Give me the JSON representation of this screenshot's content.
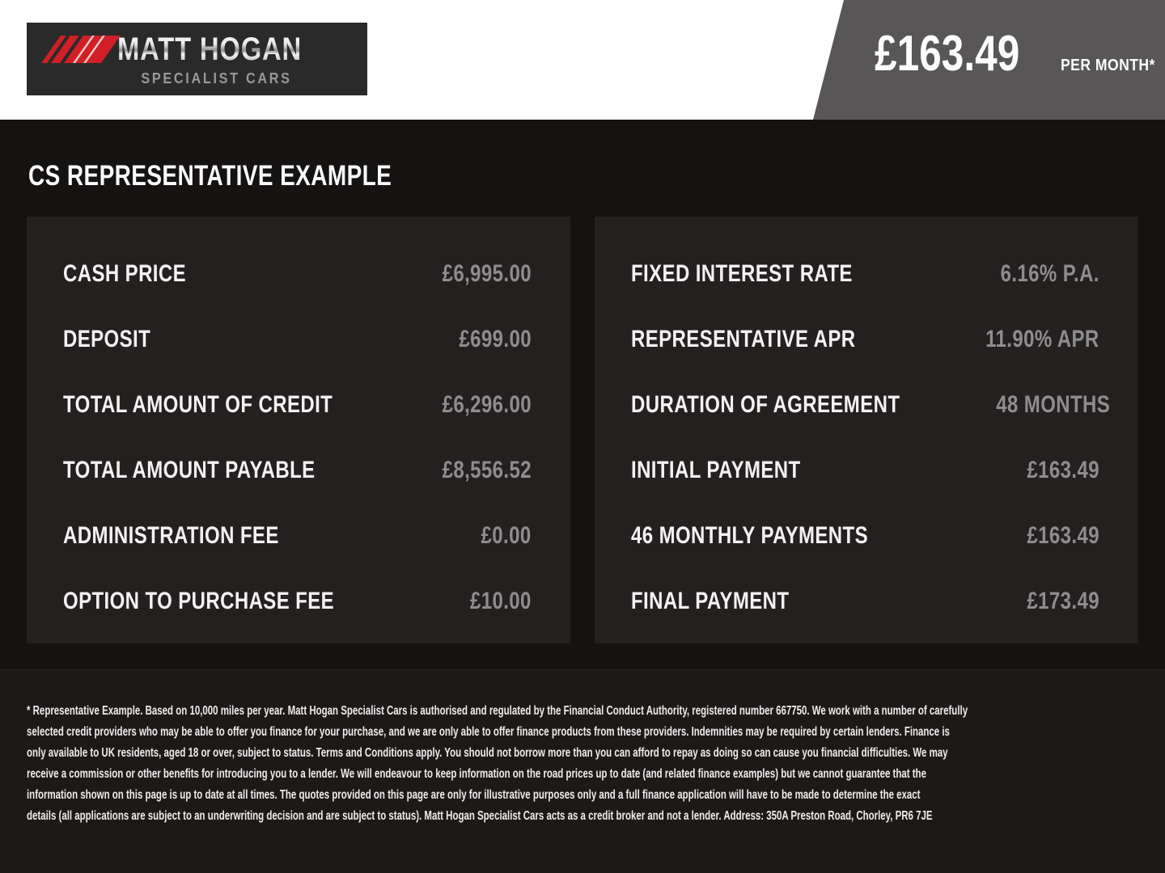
{
  "header": {
    "logo": {
      "title": "MATT HOGAN",
      "subtitle": "SPECIALIST CARS"
    },
    "monthly_price": "£163.49",
    "monthly_price_suffix": "PER MONTH*"
  },
  "main": {
    "heading": "CS REPRESENTATIVE EXAMPLE",
    "left_panel": {
      "rows": [
        {
          "label": "CASH PRICE",
          "value": "£6,995.00"
        },
        {
          "label": "DEPOSIT",
          "value": "£699.00"
        },
        {
          "label": "TOTAL AMOUNT OF CREDIT",
          "value": "£6,296.00"
        },
        {
          "label": "TOTAL AMOUNT PAYABLE",
          "value": "£8,556.52"
        },
        {
          "label": "ADMINISTRATION FEE",
          "value": "£0.00"
        },
        {
          "label": "OPTION TO PURCHASE FEE",
          "value": "£10.00"
        }
      ]
    },
    "right_panel": {
      "rows": [
        {
          "label": "FIXED INTEREST RATE",
          "value": "6.16% P.A."
        },
        {
          "label": "REPRESENTATIVE APR",
          "value": "11.90% APR"
        },
        {
          "label": "DURATION OF AGREEMENT",
          "value": "48 MONTHS"
        },
        {
          "label": "INITIAL PAYMENT",
          "value": "£163.49"
        },
        {
          "label": "46 MONTHLY PAYMENTS",
          "value": "£163.49"
        },
        {
          "label": "FINAL PAYMENT",
          "value": "£173.49"
        }
      ]
    }
  },
  "footer": {
    "lines": [
      "* Representative Example. Based on 10,000 miles per year. Matt Hogan Specialist Cars  is authorised and regulated by the Financial Conduct Authority, registered number 667750. We work with a number of carefully",
      "selected credit providers who may be able to offer you finance for your purchase, and we are only able to offer finance products from these providers. Indemnities may be required by certain lenders. Finance is",
      "only available to UK residents, aged 18 or over, subject to status. Terms and Conditions apply. You should not borrow more than you can afford to repay as doing so can cause you financial difficulties. We may",
      "receive a commission or other benefits for introducing you to a lender. We will endeavour to keep information on the road prices up to date (and related finance examples) but we cannot guarantee that the",
      "information shown on this page is up to date at all times. The quotes provided on this page are only for illustrative purposes only and a full finance application will have to be made to determine the exact",
      "details (all applications are subject to an underwriting decision and are subject to status). Matt Hogan Specialist Cars  acts as a credit broker and not a lender. Address:  350A Preston Road, Chorley, PR6 7JE"
    ]
  },
  "colors": {
    "brand_red": "#d01f26",
    "header_bg": "#ffffff",
    "flag_gray": "#585656",
    "page_bg": "#151212",
    "panel_bg": "#232020",
    "footer_bg": "#1c1919",
    "label_text": "#f3f1f1",
    "value_text": "#8e8c8c"
  }
}
